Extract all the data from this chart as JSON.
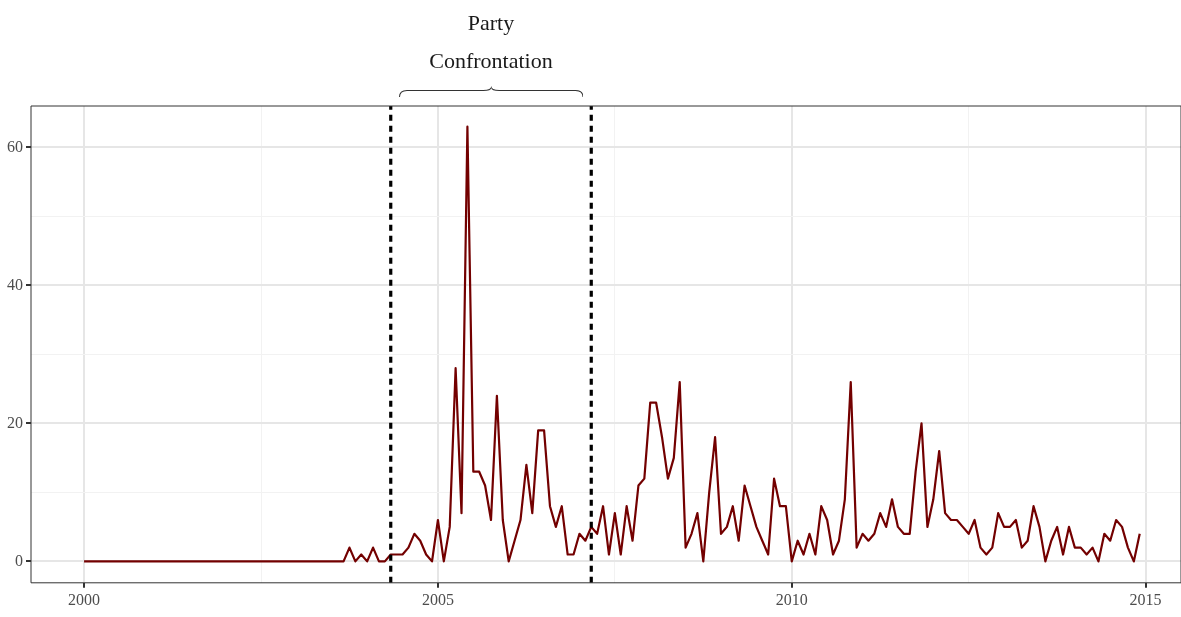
{
  "chart_data": {
    "type": "line",
    "annotations": [
      "Party\nConfrontation"
    ],
    "x": [
      "2000-01",
      "2003-09",
      "2003-10",
      "2003-11",
      "2003-12",
      "2004-01",
      "2004-02",
      "2004-03",
      "2004-04",
      "2004-05",
      "2004-06",
      "2004-07",
      "2004-08",
      "2004-09",
      "2004-10",
      "2004-11",
      "2004-12",
      "2005-01",
      "2005-02",
      "2005-03",
      "2005-04",
      "2005-05",
      "2005-06",
      "2005-07",
      "2005-08",
      "2005-09",
      "2005-10",
      "2005-11",
      "2005-12",
      "2006-01",
      "2006-02",
      "2006-03",
      "2006-04",
      "2006-05",
      "2006-06",
      "2006-07",
      "2006-08",
      "2006-09",
      "2006-10",
      "2006-11",
      "2006-12",
      "2007-01",
      "2007-02",
      "2007-03",
      "2007-04",
      "2007-05",
      "2007-06",
      "2007-07",
      "2007-08",
      "2007-09",
      "2007-10",
      "2007-11",
      "2007-12",
      "2008-01",
      "2008-02",
      "2008-03",
      "2008-04",
      "2008-05",
      "2008-06",
      "2008-07",
      "2008-08",
      "2008-09",
      "2008-10",
      "2008-11",
      "2008-12",
      "2009-01",
      "2009-02",
      "2009-03",
      "2009-04",
      "2009-05",
      "2009-06",
      "2009-07",
      "2009-08",
      "2009-09",
      "2009-10",
      "2009-11",
      "2009-12",
      "2010-01",
      "2010-02",
      "2010-03",
      "2010-04",
      "2010-05",
      "2010-06",
      "2010-07",
      "2010-08",
      "2010-09",
      "2010-10",
      "2010-11",
      "2010-12",
      "2011-01",
      "2011-02",
      "2011-03",
      "2011-04",
      "2011-05",
      "2011-06",
      "2011-07",
      "2011-08",
      "2011-09",
      "2011-10",
      "2011-11",
      "2011-12",
      "2012-01",
      "2012-02",
      "2012-03",
      "2012-04",
      "2012-05",
      "2012-06",
      "2012-07",
      "2012-08",
      "2012-09",
      "2012-10",
      "2012-11",
      "2012-12",
      "2013-01",
      "2013-02",
      "2013-03",
      "2013-04",
      "2013-05",
      "2013-06",
      "2013-07",
      "2013-08",
      "2013-09",
      "2013-10",
      "2013-11",
      "2013-12",
      "2014-01",
      "2014-02",
      "2014-03",
      "2014-04",
      "2014-05",
      "2014-06",
      "2014-07",
      "2014-08",
      "2014-09",
      "2014-10",
      "2014-11",
      "2014-12"
    ],
    "series": [
      {
        "color": "#730000",
        "values": [
          0,
          0,
          2,
          0,
          1,
          0,
          2,
          0,
          0,
          1,
          1,
          1,
          2,
          4,
          3,
          1,
          0,
          6,
          0,
          5,
          28,
          7,
          63,
          13,
          13,
          11,
          6,
          24,
          6,
          0,
          3,
          6,
          14,
          7,
          19,
          19,
          8,
          5,
          8,
          1,
          1,
          4,
          3,
          5,
          4,
          8,
          1,
          7,
          1,
          8,
          3,
          11,
          12,
          23,
          23,
          18,
          12,
          15,
          26,
          2,
          4,
          7,
          0,
          10,
          18,
          4,
          5,
          8,
          3,
          11,
          8,
          5,
          3,
          1,
          12,
          8,
          8,
          0,
          3,
          1,
          4,
          1,
          8,
          6,
          1,
          3,
          9,
          26,
          2,
          4,
          3,
          4,
          7,
          5,
          9,
          5,
          4,
          4,
          13,
          20,
          5,
          9,
          16,
          7,
          6,
          6,
          5,
          4,
          6,
          2,
          1,
          2,
          7,
          5,
          5,
          6,
          2,
          3,
          8,
          5,
          0,
          3,
          5,
          1,
          5,
          2,
          2,
          1,
          2,
          0,
          4,
          3,
          6,
          5,
          2,
          0,
          4
        ]
      }
    ],
    "xlim": [
      "1999-04",
      "2015-07"
    ],
    "xticks": [
      "2000",
      {
        "value": "2002-07",
        "label": null
      },
      "2005",
      {
        "value": "2007-07",
        "label": null
      },
      "2010",
      {
        "value": "2012-07",
        "label": null
      },
      "2015"
    ],
    "ylim": [
      -3.1,
      66
    ],
    "yticks": [
      0,
      {
        "value": 10,
        "label": null
      },
      20,
      {
        "value": 30,
        "label": null
      },
      40,
      {
        "value": 50,
        "label": null
      },
      60
    ],
    "grid": true,
    "legend": false,
    "marker": "none",
    "line_style": "solid",
    "ref_lines": [
      {
        "axis": "x",
        "value": "2004-05",
        "color": "#000000",
        "line_style": "dashed"
      },
      {
        "axis": "x",
        "value": "2007-03",
        "color": "#000000",
        "line_style": "dashed"
      }
    ]
  }
}
